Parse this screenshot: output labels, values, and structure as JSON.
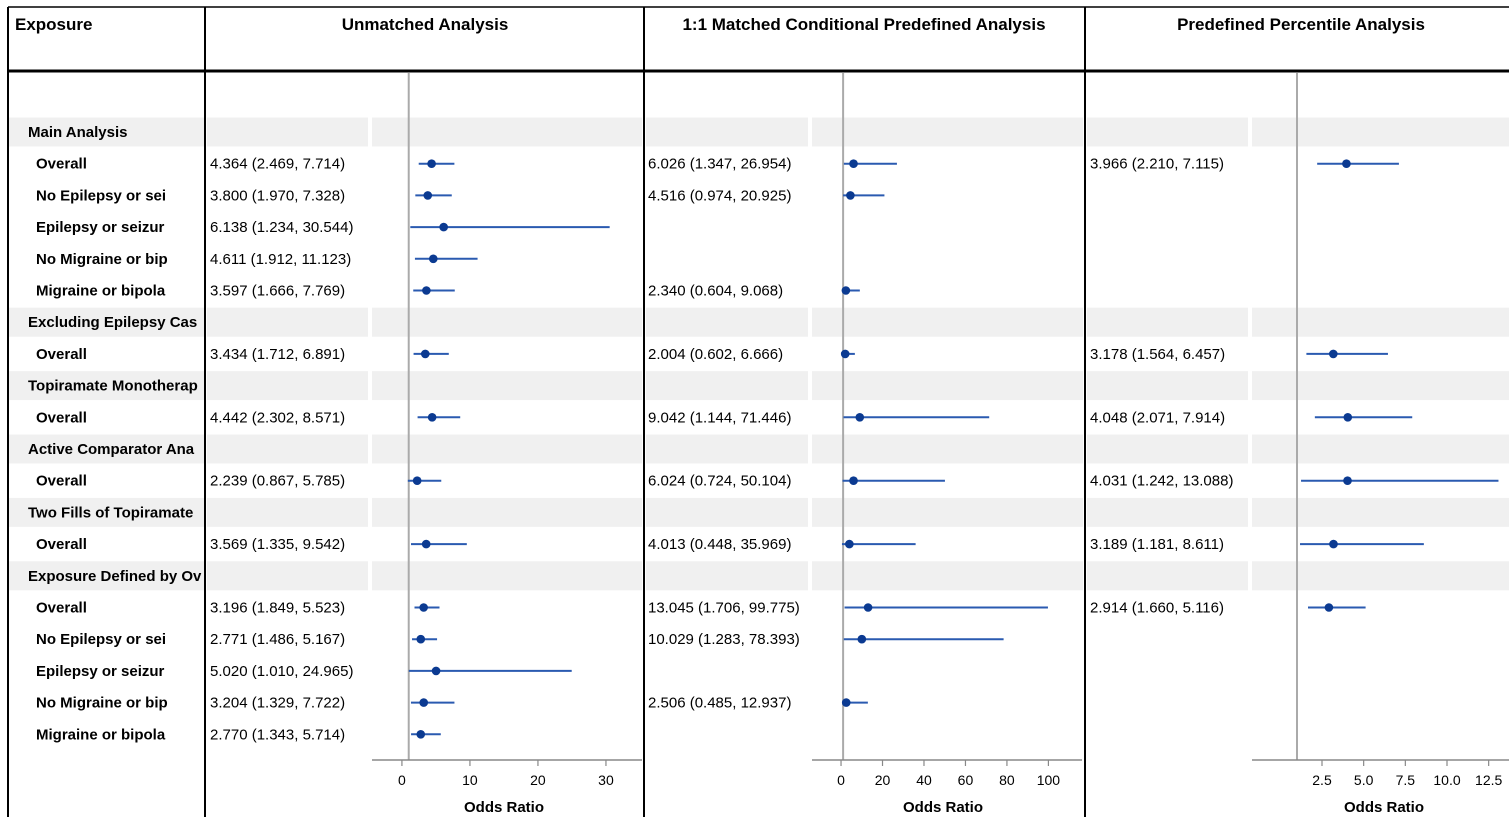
{
  "headers": {
    "exposure": "Exposure",
    "panels": [
      "Unmatched Analysis",
      "1:1 Matched Conditional Predefined Analysis",
      "Predefined Percentile Analysis"
    ]
  },
  "rows": [
    {
      "type": "group",
      "label": "Main Analysis"
    },
    {
      "type": "row",
      "label": "Overall"
    },
    {
      "type": "row",
      "label": "No Epilepsy or sei"
    },
    {
      "type": "row",
      "label": "Epilepsy or seizur"
    },
    {
      "type": "row",
      "label": "No Migraine or bip"
    },
    {
      "type": "row",
      "label": "Migraine or bipola"
    },
    {
      "type": "group",
      "label": "Excluding Epilepsy Cas"
    },
    {
      "type": "row",
      "label": "Overall"
    },
    {
      "type": "group",
      "label": "Topiramate Monotherap"
    },
    {
      "type": "row",
      "label": "Overall"
    },
    {
      "type": "group",
      "label": "Active Comparator Ana"
    },
    {
      "type": "row",
      "label": "Overall"
    },
    {
      "type": "group",
      "label": "Two Fills of Topiramate"
    },
    {
      "type": "row",
      "label": "Overall"
    },
    {
      "type": "group",
      "label": "Exposure Defined by Ov"
    },
    {
      "type": "row",
      "label": "Overall"
    },
    {
      "type": "row",
      "label": "No Epilepsy or sei"
    },
    {
      "type": "row",
      "label": "Epilepsy or seizur"
    },
    {
      "type": "row",
      "label": "No Migraine or bip"
    },
    {
      "type": "row",
      "label": "Migraine or bipola"
    }
  ],
  "chart_data": [
    {
      "type": "forest",
      "title": "Unmatched Analysis",
      "xlabel": "Odds Ratio",
      "xlim": [
        -4.4,
        35.3
      ],
      "xticks": [
        0,
        10,
        20,
        30
      ],
      "reference_line": 1,
      "estimates": [
        null,
        {
          "text": "4.364 (2.469, 7.714)",
          "or": 4.364,
          "lo": 2.469,
          "hi": 7.714
        },
        {
          "text": "3.800 (1.970, 7.328)",
          "or": 3.8,
          "lo": 1.97,
          "hi": 7.328
        },
        {
          "text": "6.138 (1.234, 30.544)",
          "or": 6.138,
          "lo": 1.234,
          "hi": 30.544
        },
        {
          "text": "4.611 (1.912, 11.123)",
          "or": 4.611,
          "lo": 1.912,
          "hi": 11.123
        },
        {
          "text": "3.597 (1.666, 7.769)",
          "or": 3.597,
          "lo": 1.666,
          "hi": 7.769
        },
        null,
        {
          "text": "3.434 (1.712, 6.891)",
          "or": 3.434,
          "lo": 1.712,
          "hi": 6.891
        },
        null,
        {
          "text": "4.442 (2.302, 8.571)",
          "or": 4.442,
          "lo": 2.302,
          "hi": 8.571
        },
        null,
        {
          "text": "2.239 (0.867, 5.785)",
          "or": 2.239,
          "lo": 0.867,
          "hi": 5.785
        },
        null,
        {
          "text": "3.569 (1.335, 9.542)",
          "or": 3.569,
          "lo": 1.335,
          "hi": 9.542
        },
        null,
        {
          "text": "3.196 (1.849, 5.523)",
          "or": 3.196,
          "lo": 1.849,
          "hi": 5.523
        },
        {
          "text": "2.771 (1.486, 5.167)",
          "or": 2.771,
          "lo": 1.486,
          "hi": 5.167
        },
        {
          "text": "5.020 (1.010, 24.965)",
          "or": 5.02,
          "lo": 1.01,
          "hi": 24.965
        },
        {
          "text": "3.204 (1.329, 7.722)",
          "or": 3.204,
          "lo": 1.329,
          "hi": 7.722
        },
        {
          "text": "2.770 (1.343, 5.714)",
          "or": 2.77,
          "lo": 1.343,
          "hi": 5.714
        }
      ]
    },
    {
      "type": "forest",
      "title": "1:1 Matched Conditional Predefined Analysis",
      "xlabel": "Odds Ratio",
      "xlim": [
        -14,
        108
      ],
      "xticks": [
        0,
        20,
        40,
        60,
        80,
        100
      ],
      "reference_line": 1,
      "estimates": [
        null,
        {
          "text": "6.026 (1.347, 26.954)",
          "or": 6.026,
          "lo": 1.347,
          "hi": 26.954
        },
        {
          "text": "4.516 (0.974, 20.925)",
          "or": 4.516,
          "lo": 0.974,
          "hi": 20.925
        },
        null,
        null,
        {
          "text": "2.340 (0.604, 9.068)",
          "or": 2.34,
          "lo": 0.604,
          "hi": 9.068
        },
        null,
        {
          "text": "2.004 (0.602, 6.666)",
          "or": 2.004,
          "lo": 0.602,
          "hi": 6.666
        },
        null,
        {
          "text": "9.042 (1.144, 71.446)",
          "or": 9.042,
          "lo": 1.144,
          "hi": 71.446
        },
        null,
        {
          "text": "6.024 (0.724, 50.104)",
          "or": 6.024,
          "lo": 0.724,
          "hi": 50.104
        },
        null,
        {
          "text": "4.013 (0.448, 35.969)",
          "or": 4.013,
          "lo": 0.448,
          "hi": 35.969
        },
        null,
        {
          "text": "13.045 (1.706, 99.775)",
          "or": 13.045,
          "lo": 1.706,
          "hi": 99.775
        },
        {
          "text": "10.029 (1.283, 78.393)",
          "or": 10.029,
          "lo": 1.283,
          "hi": 78.393
        },
        null,
        {
          "text": "2.506 (0.485, 12.937)",
          "or": 2.506,
          "lo": 0.485,
          "hi": 12.937
        },
        null
      ]
    },
    {
      "type": "forest",
      "title": "Predefined Percentile Analysis",
      "xlabel": "Odds Ratio",
      "xlim": [
        -1.7,
        13.72
      ],
      "xticks": [
        2.5,
        5.0,
        7.5,
        10.0,
        12.5
      ],
      "tick_labels": [
        "2.5",
        "5.0",
        "7.5",
        "10.0",
        "12.5"
      ],
      "reference_line": 1,
      "estimates": [
        null,
        {
          "text": "3.966 (2.210, 7.115)",
          "or": 3.966,
          "lo": 2.21,
          "hi": 7.115
        },
        null,
        null,
        null,
        null,
        null,
        {
          "text": "3.178 (1.564, 6.457)",
          "or": 3.178,
          "lo": 1.564,
          "hi": 6.457
        },
        null,
        {
          "text": "4.048 (2.071, 7.914)",
          "or": 4.048,
          "lo": 2.071,
          "hi": 7.914
        },
        null,
        {
          "text": "4.031 (1.242, 13.088)",
          "or": 4.031,
          "lo": 1.242,
          "hi": 13.088
        },
        null,
        {
          "text": "3.189 (1.181, 8.611)",
          "or": 3.189,
          "lo": 1.181,
          "hi": 8.611
        },
        null,
        {
          "text": "2.914 (1.660, 5.116)",
          "or": 2.914,
          "lo": 1.66,
          "hi": 5.116
        },
        null,
        null,
        null,
        null
      ]
    }
  ],
  "colors": {
    "marker": "#0b3a91",
    "ci_line": "#2a5ab0",
    "reference_line": "#aaaaaa",
    "group_band": "#f0f0f0",
    "border": "#000000",
    "axis": "#888888"
  }
}
